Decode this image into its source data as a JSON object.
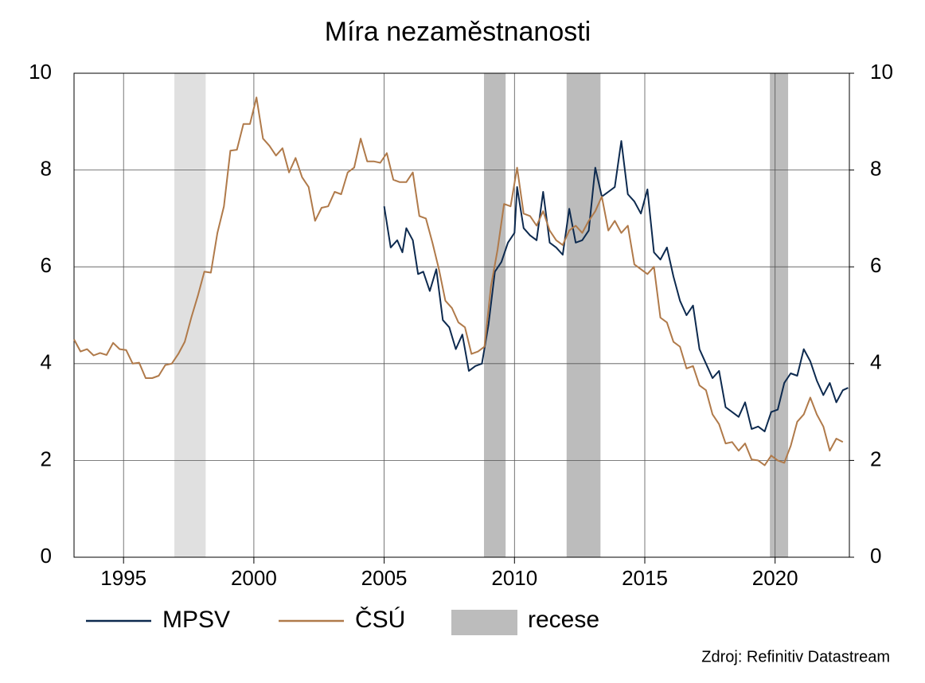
{
  "chart_data": {
    "type": "line",
    "title": "Míra nezaměstnanosti",
    "source": "Zdroj: Refinitiv Datastream",
    "xlim": [
      1993.1,
      2022.85
    ],
    "xticks": [
      1995,
      2000,
      2005,
      2010,
      2015,
      2020
    ],
    "ylim": [
      0,
      10
    ],
    "yticks": [
      0,
      2,
      4,
      6,
      8,
      10
    ],
    "y2lim": [
      0,
      10
    ],
    "y2ticks": [
      0,
      2,
      4,
      6,
      8,
      10
    ],
    "grid": true,
    "series": [
      {
        "name": "MPSV",
        "color": "#0d2a4f",
        "x": [
          2005.0,
          2005.25,
          2005.5,
          2005.7,
          2005.85,
          2006.1,
          2006.3,
          2006.5,
          2006.75,
          2007.0,
          2007.25,
          2007.5,
          2007.75,
          2008.0,
          2008.25,
          2008.5,
          2008.75,
          2009.0,
          2009.25,
          2009.5,
          2009.75,
          2010.0,
          2010.1,
          2010.35,
          2010.6,
          2010.85,
          2011.1,
          2011.35,
          2011.6,
          2011.85,
          2012.1,
          2012.35,
          2012.6,
          2012.85,
          2013.1,
          2013.35,
          2013.6,
          2013.85,
          2014.1,
          2014.35,
          2014.6,
          2014.85,
          2015.1,
          2015.35,
          2015.6,
          2015.85,
          2016.1,
          2016.35,
          2016.6,
          2016.85,
          2017.1,
          2017.35,
          2017.6,
          2017.85,
          2018.1,
          2018.35,
          2018.6,
          2018.85,
          2019.1,
          2019.35,
          2019.6,
          2019.85,
          2020.1,
          2020.35,
          2020.6,
          2020.85,
          2021.1,
          2021.35,
          2021.6,
          2021.85,
          2022.1,
          2022.35,
          2022.6,
          2022.8
        ],
        "values": [
          7.25,
          6.4,
          6.55,
          6.3,
          6.8,
          6.55,
          5.85,
          5.9,
          5.5,
          5.95,
          4.9,
          4.75,
          4.3,
          4.6,
          3.85,
          3.95,
          4.0,
          4.8,
          5.9,
          6.1,
          6.5,
          6.7,
          7.65,
          6.8,
          6.65,
          6.55,
          7.55,
          6.5,
          6.4,
          6.25,
          7.2,
          6.5,
          6.55,
          6.75,
          8.05,
          7.45,
          7.55,
          7.65,
          8.6,
          7.5,
          7.35,
          7.1,
          7.6,
          6.3,
          6.15,
          6.4,
          5.8,
          5.3,
          5.0,
          5.2,
          4.3,
          4.0,
          3.7,
          3.85,
          3.1,
          3.0,
          2.9,
          3.2,
          2.65,
          2.7,
          2.6,
          3.0,
          3.05,
          3.6,
          3.8,
          3.75,
          4.3,
          4.05,
          3.65,
          3.35,
          3.6,
          3.2,
          3.45,
          3.5
        ]
      },
      {
        "name": "ČSÚ",
        "color": "#b07a4a",
        "x": [
          1993.1,
          1993.35,
          1993.6,
          1993.85,
          1994.1,
          1994.35,
          1994.6,
          1994.85,
          1995.1,
          1995.35,
          1995.6,
          1995.85,
          1996.1,
          1996.35,
          1996.6,
          1996.85,
          1997.1,
          1997.35,
          1997.6,
          1997.85,
          1998.1,
          1998.35,
          1998.6,
          1998.85,
          1999.1,
          1999.35,
          1999.6,
          1999.85,
          2000.1,
          2000.35,
          2000.6,
          2000.85,
          2001.1,
          2001.35,
          2001.6,
          2001.85,
          2002.1,
          2002.35,
          2002.6,
          2002.85,
          2003.1,
          2003.35,
          2003.6,
          2003.85,
          2004.1,
          2004.35,
          2004.6,
          2004.85,
          2005.1,
          2005.35,
          2005.6,
          2005.85,
          2006.1,
          2006.35,
          2006.6,
          2006.85,
          2007.1,
          2007.35,
          2007.6,
          2007.85,
          2008.1,
          2008.35,
          2008.6,
          2008.85,
          2009.1,
          2009.35,
          2009.6,
          2009.85,
          2010.1,
          2010.35,
          2010.6,
          2010.85,
          2011.1,
          2011.35,
          2011.6,
          2011.85,
          2012.1,
          2012.35,
          2012.6,
          2012.85,
          2013.1,
          2013.35,
          2013.6,
          2013.85,
          2014.1,
          2014.35,
          2014.6,
          2014.85,
          2015.1,
          2015.35,
          2015.6,
          2015.85,
          2016.1,
          2016.35,
          2016.6,
          2016.85,
          2017.1,
          2017.35,
          2017.6,
          2017.85,
          2018.1,
          2018.35,
          2018.6,
          2018.85,
          2019.1,
          2019.35,
          2019.6,
          2019.85,
          2020.1,
          2020.35,
          2020.6,
          2020.85,
          2021.1,
          2021.35,
          2021.6,
          2021.85,
          2022.1,
          2022.35,
          2022.6
        ],
        "values": [
          4.5,
          4.25,
          4.3,
          4.17,
          4.22,
          4.18,
          4.43,
          4.3,
          4.28,
          4.0,
          4.02,
          3.7,
          3.7,
          3.75,
          3.97,
          4.0,
          4.2,
          4.45,
          4.95,
          5.4,
          5.9,
          5.88,
          6.7,
          7.25,
          8.4,
          8.42,
          8.95,
          8.95,
          9.5,
          8.65,
          8.5,
          8.3,
          8.45,
          7.95,
          8.25,
          7.85,
          7.65,
          6.95,
          7.22,
          7.25,
          7.55,
          7.5,
          7.95,
          8.05,
          8.65,
          8.18,
          8.18,
          8.15,
          8.35,
          7.8,
          7.75,
          7.75,
          7.95,
          7.05,
          7.0,
          6.5,
          5.95,
          5.3,
          5.15,
          4.85,
          4.75,
          4.2,
          4.25,
          4.35,
          5.6,
          6.35,
          7.3,
          7.25,
          8.05,
          7.1,
          7.05,
          6.85,
          7.15,
          6.75,
          6.55,
          6.45,
          6.75,
          6.85,
          6.7,
          6.95,
          7.15,
          7.45,
          6.75,
          6.95,
          6.7,
          6.85,
          6.05,
          5.95,
          5.85,
          6.0,
          4.95,
          4.85,
          4.45,
          4.35,
          3.9,
          3.95,
          3.55,
          3.45,
          2.95,
          2.75,
          2.35,
          2.38,
          2.2,
          2.35,
          2.02,
          2.0,
          1.9,
          2.1,
          2.0,
          1.95,
          2.3,
          2.8,
          2.95,
          3.3,
          2.95,
          2.7,
          2.2,
          2.45,
          2.38
        ]
      }
    ],
    "recession_label": "recese",
    "recession_color": "#bcbcbc",
    "recessions": [
      {
        "start": 1996.95,
        "end": 1998.15,
        "color": "#e0e0e0"
      },
      {
        "start": 2008.83,
        "end": 2009.66,
        "color": "#bcbcbc"
      },
      {
        "start": 2012.0,
        "end": 2013.3,
        "color": "#bcbcbc"
      },
      {
        "start": 2019.8,
        "end": 2020.5,
        "color": "#bcbcbc"
      }
    ]
  }
}
